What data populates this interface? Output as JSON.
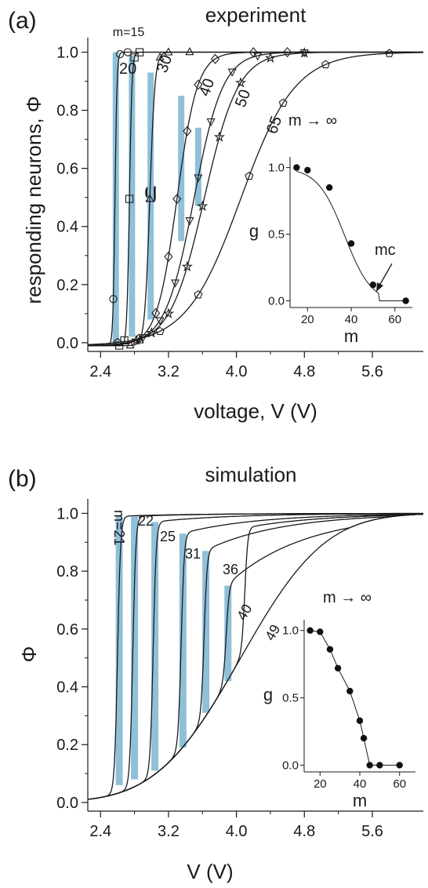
{
  "panels": [
    {
      "label": "(a)",
      "title": "experiment",
      "ylabel": "responding neurons, Φ",
      "xlabel": "voltage, V (V)",
      "curve_label_m": "m=15",
      "g_label": "g",
      "limit_label": "m → ∞"
    },
    {
      "label": "(b)",
      "title": "simulation",
      "ylabel": "Φ",
      "xlabel": "V (V)",
      "curve_label_m": "m=21",
      "limit_label": "m → ∞"
    }
  ],
  "chart_data": [
    {
      "type": "line",
      "panel": "a",
      "title": "experiment",
      "xlabel": "voltage, V (V)",
      "ylabel": "responding neurons, Φ",
      "xlim": [
        2.25,
        6.2
      ],
      "ylim": [
        -0.03,
        1.05
      ],
      "xticks": [
        "2.4",
        "3.2",
        "4.0",
        "4.8",
        "5.6"
      ],
      "yticks": [
        "0.0",
        "0.2",
        "0.4",
        "0.6",
        "0.8",
        "1.0"
      ],
      "curve_labels": [
        "m=15",
        "20",
        "30",
        "40",
        "50",
        "65",
        "m → ∞"
      ],
      "series": [
        {
          "label": "m=15",
          "marker": "circle",
          "v0": 2.57,
          "w": 0.012
        },
        {
          "label": "20",
          "marker": "square",
          "v0": 2.74,
          "w": 0.015
        },
        {
          "label": "30",
          "marker": "triangle",
          "v0": 2.98,
          "w": 0.03
        },
        {
          "label": "40",
          "marker": "diamond",
          "v0": 3.3,
          "w": 0.12
        },
        {
          "label": "50",
          "marker": "triangle-down",
          "v0": 3.5,
          "w": 0.17
        },
        {
          "label": "65",
          "marker": "star",
          "v0": 3.62,
          "w": 0.2
        },
        {
          "label": "m → ∞",
          "marker": "pentagon",
          "v0": 4.05,
          "w": 0.32
        }
      ],
      "gaps": [
        {
          "x": 2.58,
          "y_low": 0.0,
          "y_high": 1.0
        },
        {
          "x": 2.77,
          "y_low": 0.02,
          "y_high": 0.99
        },
        {
          "x": 2.99,
          "y_low": 0.08,
          "y_high": 0.93
        },
        {
          "x": 3.35,
          "y_low": 0.35,
          "y_high": 0.85
        },
        {
          "x": 3.55,
          "y_low": 0.47,
          "y_high": 0.74
        }
      ],
      "inset": {
        "xlabel": "m",
        "ylabel": "g",
        "annotation": "mᴄ",
        "xlim": [
          12,
          68
        ],
        "ylim": [
          -0.05,
          1.08
        ],
        "xticks": [
          "20",
          "40",
          "60"
        ],
        "yticks": [
          "0.0",
          "0.5",
          "1.0"
        ],
        "points": [
          {
            "m": 15,
            "g": 1.0
          },
          {
            "m": 20,
            "g": 0.98
          },
          {
            "m": 30,
            "g": 0.85
          },
          {
            "m": 40,
            "g": 0.43
          },
          {
            "m": 50,
            "g": 0.12
          },
          {
            "m": 65,
            "g": 0.0
          }
        ]
      }
    },
    {
      "type": "line",
      "panel": "b",
      "title": "simulation",
      "xlabel": "V (V)",
      "ylabel": "Φ",
      "xlim": [
        2.25,
        6.2
      ],
      "ylim": [
        -0.03,
        1.05
      ],
      "xticks": [
        "2.4",
        "3.2",
        "4.0",
        "4.8",
        "5.6"
      ],
      "yticks": [
        "0.0",
        "0.2",
        "0.4",
        "0.6",
        "0.8",
        "1.0"
      ],
      "curve_labels": [
        "m=21",
        "22",
        "25",
        "31",
        "36",
        "40",
        "49",
        "m → ∞"
      ],
      "series": [
        {
          "label": "m=21",
          "v0": 2.6
        },
        {
          "label": "22",
          "v0": 2.78
        },
        {
          "label": "25",
          "v0": 3.02
        },
        {
          "label": "31",
          "v0": 3.35
        },
        {
          "label": "36",
          "v0": 3.62
        },
        {
          "label": "40",
          "v0": 3.88
        },
        {
          "label": "49",
          "v0": 4.1
        },
        {
          "label": "m → ∞"
        }
      ],
      "gaps": [
        {
          "x": 2.62,
          "y_low": 0.06,
          "y_high": 0.99
        },
        {
          "x": 2.8,
          "y_low": 0.08,
          "y_high": 0.99
        },
        {
          "x": 3.04,
          "y_low": 0.11,
          "y_high": 0.97
        },
        {
          "x": 3.37,
          "y_low": 0.19,
          "y_high": 0.93
        },
        {
          "x": 3.64,
          "y_low": 0.31,
          "y_high": 0.87
        },
        {
          "x": 3.9,
          "y_low": 0.42,
          "y_high": 0.75
        }
      ],
      "inset": {
        "xlabel": "m",
        "ylabel": "g",
        "xlim": [
          12,
          68
        ],
        "ylim": [
          -0.05,
          1.08
        ],
        "xticks": [
          "20",
          "40",
          "60"
        ],
        "yticks": [
          "0.0",
          "0.5",
          "1.0"
        ],
        "points": [
          {
            "m": 15,
            "g": 1.0
          },
          {
            "m": 20,
            "g": 0.99
          },
          {
            "m": 25,
            "g": 0.86
          },
          {
            "m": 29,
            "g": 0.72
          },
          {
            "m": 35,
            "g": 0.55
          },
          {
            "m": 40,
            "g": 0.33
          },
          {
            "m": 42,
            "g": 0.2
          },
          {
            "m": 45,
            "g": 0.0
          },
          {
            "m": 50,
            "g": 0.0
          },
          {
            "m": 60,
            "g": 0.0
          }
        ]
      }
    }
  ]
}
